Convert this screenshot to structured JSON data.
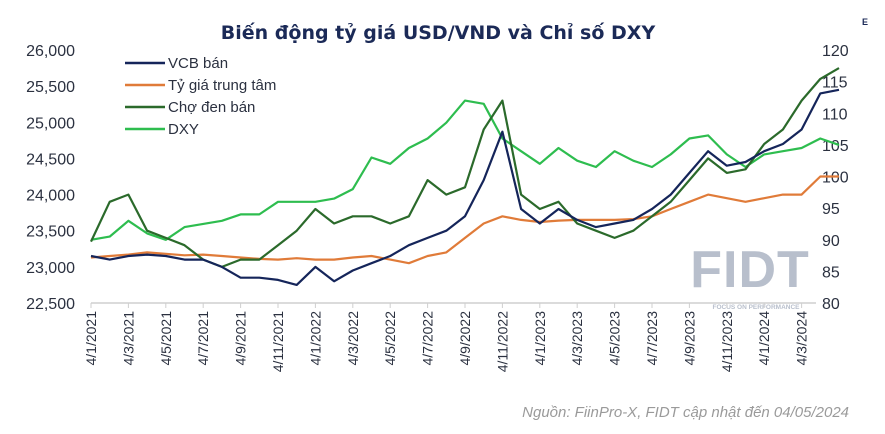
{
  "chart_data": {
    "type": "line",
    "title": "Biến động tỷ giá USD/VND và Chỉ số DXY",
    "corner_mark": "E",
    "source": "Nguồn: FiinPro-X, FIDT cập nhật đến 04/05/2024",
    "logo": {
      "text": "FIDT",
      "tagline": "FOCUS ON PERFORMANCE"
    },
    "x": [
      "2021-01",
      "2021-02",
      "2021-03",
      "2021-04",
      "2021-05",
      "2021-06",
      "2021-07",
      "2021-08",
      "2021-09",
      "2021-10",
      "2021-11",
      "2021-12",
      "2022-01",
      "2022-02",
      "2022-03",
      "2022-04",
      "2022-05",
      "2022-06",
      "2022-07",
      "2022-08",
      "2022-09",
      "2022-10",
      "2022-11",
      "2022-12",
      "2023-01",
      "2023-02",
      "2023-03",
      "2023-04",
      "2023-05",
      "2023-06",
      "2023-07",
      "2023-08",
      "2023-09",
      "2023-10",
      "2023-11",
      "2023-12",
      "2024-01",
      "2024-02",
      "2024-03",
      "2024-04",
      "2024-05"
    ],
    "x_tick_labels": [
      "4/1/2021",
      "4/3/2021",
      "4/5/2021",
      "4/7/2021",
      "4/9/2021",
      "4/11/2021",
      "4/1/2022",
      "4/3/2022",
      "4/5/2022",
      "4/7/2022",
      "4/9/2022",
      "4/11/2022",
      "4/1/2023",
      "4/3/2023",
      "4/5/2023",
      "4/7/2023",
      "4/9/2023",
      "4/11/2023",
      "4/1/2024",
      "4/3/2024"
    ],
    "y_left": {
      "ylim": [
        22500,
        26000
      ],
      "ticks": [
        "22,500",
        "23,000",
        "23,500",
        "24,000",
        "24,500",
        "25,000",
        "25,500",
        "26,000"
      ]
    },
    "y_right": {
      "ylim": [
        80,
        120
      ],
      "ticks": [
        "80",
        "85",
        "90",
        "95",
        "100",
        "105",
        "110",
        "115",
        "120"
      ]
    },
    "legend_position": "top-left",
    "grid": false,
    "series": [
      {
        "name": "VCB bán",
        "axis": "left",
        "color": "#15255a",
        "values": [
          23150,
          23100,
          23150,
          23170,
          23150,
          23100,
          23100,
          23000,
          22850,
          22850,
          22820,
          22750,
          23000,
          22800,
          22950,
          23050,
          23150,
          23300,
          23400,
          23500,
          23700,
          24200,
          24870,
          23800,
          23600,
          23800,
          23650,
          23550,
          23600,
          23650,
          23800,
          24000,
          24300,
          24600,
          24400,
          24450,
          24600,
          24700,
          24900,
          25400,
          25450
        ]
      },
      {
        "name": "Tỷ giá trung tâm",
        "axis": "left",
        "color": "#e07b39",
        "values": [
          23130,
          23150,
          23170,
          23200,
          23180,
          23160,
          23170,
          23150,
          23130,
          23110,
          23100,
          23120,
          23100,
          23100,
          23130,
          23150,
          23100,
          23050,
          23150,
          23200,
          23400,
          23600,
          23700,
          23650,
          23620,
          23640,
          23650,
          23650,
          23650,
          23660,
          23700,
          23800,
          23900,
          24000,
          23950,
          23900,
          23950,
          24000,
          24000,
          24250,
          24250
        ]
      },
      {
        "name": "Chợ đen bán",
        "axis": "left",
        "color": "#2b6a2b",
        "values": [
          23350,
          23900,
          24000,
          23500,
          23400,
          23300,
          23100,
          23000,
          23100,
          23100,
          23300,
          23500,
          23800,
          23600,
          23700,
          23700,
          23600,
          23700,
          24200,
          24000,
          24100,
          24900,
          25300,
          24000,
          23800,
          23900,
          23600,
          23500,
          23400,
          23500,
          23700,
          23900,
          24200,
          24500,
          24300,
          24350,
          24700,
          24900,
          25300,
          25600,
          25750
        ]
      },
      {
        "name": "DXY",
        "axis": "right",
        "color": "#2ebd4f",
        "values": [
          90,
          90.5,
          93,
          91,
          90,
          92,
          92.5,
          93,
          94,
          94,
          96,
          96,
          96,
          96.5,
          98,
          103,
          102,
          104.5,
          106,
          108.5,
          112,
          111.5,
          106,
          104,
          102,
          104.5,
          102.5,
          101.5,
          104,
          102.5,
          101.5,
          103.5,
          106,
          106.5,
          103.5,
          101.5,
          103.5,
          104,
          104.5,
          106,
          105
        ]
      }
    ]
  }
}
